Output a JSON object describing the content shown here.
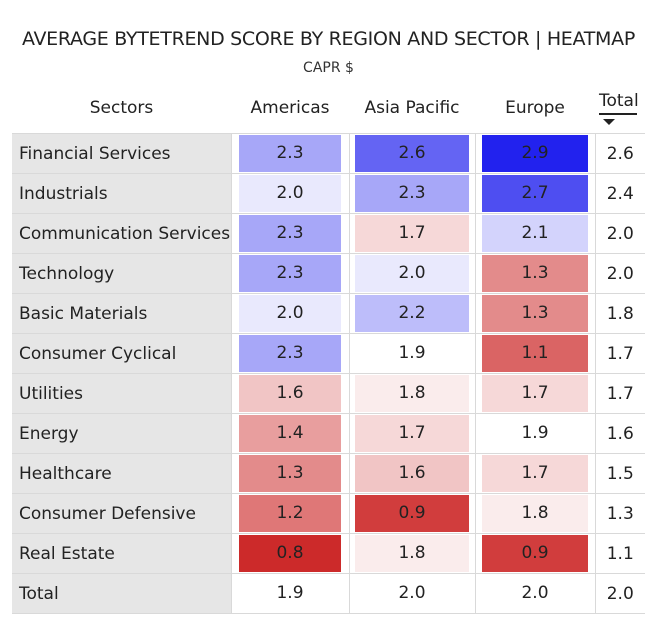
{
  "chart_data": {
    "type": "heatmap",
    "title": "AVERAGE BYTETREND SCORE BY REGION AND SECTOR | HEATMAP",
    "subtitle": "CAPR $",
    "row_header": "Sectors",
    "columns": [
      "Americas",
      "Asia Pacific",
      "Europe",
      "Total"
    ],
    "sort_indicator": "Total descending",
    "rows": [
      {
        "label": "Financial Services",
        "values": [
          "2.3",
          "2.6",
          "2.9"
        ],
        "total": "2.6"
      },
      {
        "label": "Industrials",
        "values": [
          "2.0",
          "2.3",
          "2.7"
        ],
        "total": "2.4"
      },
      {
        "label": "Communication Services",
        "values": [
          "2.3",
          "1.7",
          "2.1"
        ],
        "total": "2.0"
      },
      {
        "label": "Technology",
        "values": [
          "2.3",
          "2.0",
          "1.3"
        ],
        "total": "2.0"
      },
      {
        "label": "Basic Materials",
        "values": [
          "2.0",
          "2.2",
          "1.3"
        ],
        "total": "1.8"
      },
      {
        "label": "Consumer Cyclical",
        "values": [
          "2.3",
          "1.9",
          "1.1"
        ],
        "total": "1.7"
      },
      {
        "label": "Utilities",
        "values": [
          "1.6",
          "1.8",
          "1.7"
        ],
        "total": "1.7"
      },
      {
        "label": "Energy",
        "values": [
          "1.4",
          "1.7",
          "1.9"
        ],
        "total": "1.6"
      },
      {
        "label": "Healthcare",
        "values": [
          "1.3",
          "1.6",
          "1.7"
        ],
        "total": "1.5"
      },
      {
        "label": "Consumer Defensive",
        "values": [
          "1.2",
          "0.9",
          "1.8"
        ],
        "total": "1.3"
      },
      {
        "label": "Real Estate",
        "values": [
          "0.8",
          "1.8",
          "0.9"
        ],
        "total": "1.1"
      }
    ],
    "total_row": {
      "label": "Total",
      "values": [
        "1.9",
        "2.0",
        "2.0"
      ],
      "total": "2.0"
    },
    "color_scale": {
      "low": "#cc2a2a",
      "mid": "#ffffff",
      "high": "#2222ee",
      "low_value": 0.8,
      "mid_value": 1.9,
      "high_value": 2.9
    }
  }
}
